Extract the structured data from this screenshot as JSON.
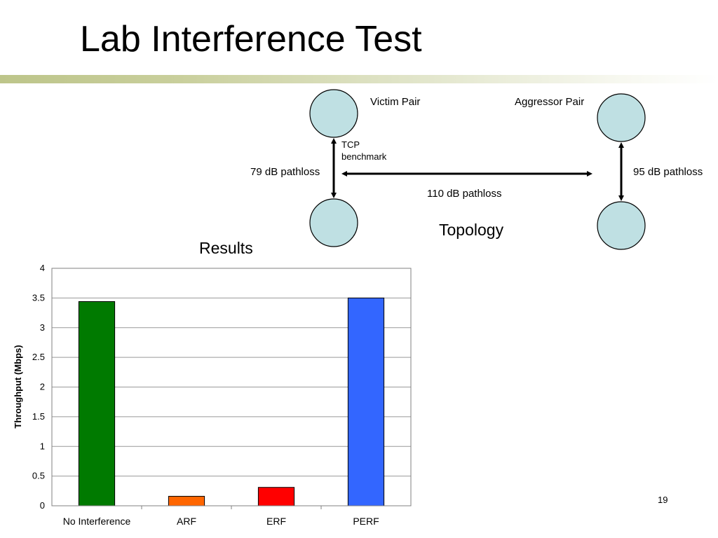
{
  "slide": {
    "title": "Lab Interference Test",
    "page_number": "19"
  },
  "topology": {
    "caption": "Topology",
    "victim_label": "Victim Pair",
    "aggressor_label": "Aggressor Pair",
    "tcp_label": "TCP benchmark",
    "victim_pathloss": "79 dB pathloss",
    "aggressor_pathloss": "95 dB pathloss",
    "cross_pathloss": "110 dB pathloss",
    "node_color": "#bfe0e3"
  },
  "chart_data": {
    "type": "bar",
    "title": "Results",
    "ylabel": "Throughput (Mbps)",
    "xlabel": "",
    "categories": [
      "No Interference",
      "ARF",
      "ERF",
      "PERF"
    ],
    "values": [
      3.44,
      0.16,
      0.31,
      3.5
    ],
    "colors": [
      "#007a00",
      "#ff6600",
      "#ff0000",
      "#3366ff"
    ],
    "ylim": [
      0,
      4
    ],
    "yticks": [
      0,
      0.5,
      1,
      1.5,
      2,
      2.5,
      3,
      3.5,
      4
    ],
    "grid": true,
    "legend": "none"
  }
}
